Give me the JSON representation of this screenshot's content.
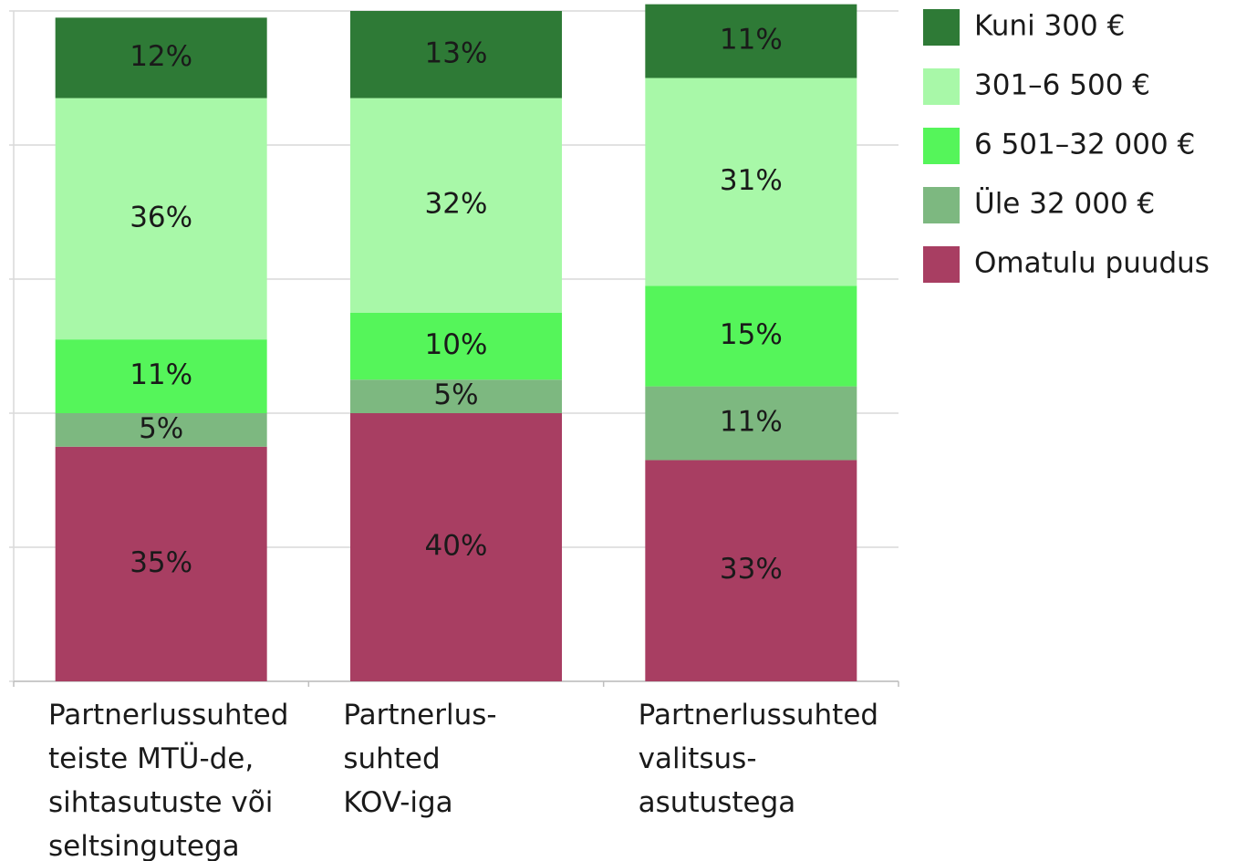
{
  "chart_data": {
    "type": "stacked_bar",
    "categories": [
      [
        "Partnerlussuhted",
        "teiste MTÜ-de,",
        "sihtasutuste või",
        "seltsingutega"
      ],
      [
        "Partnerlus-",
        "suhted",
        "KOV-iga"
      ],
      [
        "Partnerlussuhted",
        "valitsus-",
        "asutustega"
      ]
    ],
    "series": [
      {
        "name": "Kuni 300 €",
        "color": "#2e7a36",
        "values": [
          12,
          13,
          11
        ],
        "value_labels": [
          "12%",
          "13%",
          "11%"
        ]
      },
      {
        "name": "301–6 500 €",
        "color": "#a8f8a8",
        "values": [
          36,
          32,
          31
        ],
        "value_labels": [
          "36%",
          "32%",
          "31%"
        ]
      },
      {
        "name": "6 501–32 000 €",
        "color": "#55f55a",
        "values": [
          11,
          10,
          15
        ],
        "value_labels": [
          "11%",
          "10%",
          "15%"
        ]
      },
      {
        "name": "Üle 32 000 €",
        "color": "#7db880",
        "values": [
          5,
          5,
          11
        ],
        "value_labels": [
          "5%",
          "5%",
          "11%"
        ]
      },
      {
        "name": "Omatulu puudus",
        "color": "#a83e62",
        "values": [
          35,
          40,
          33
        ],
        "value_labels": [
          "35%",
          "40%",
          "33%"
        ]
      }
    ],
    "ylim": [
      0,
      100
    ],
    "yticks": [
      0,
      20,
      40,
      60,
      80,
      100
    ],
    "grid": true,
    "legend": "right"
  }
}
